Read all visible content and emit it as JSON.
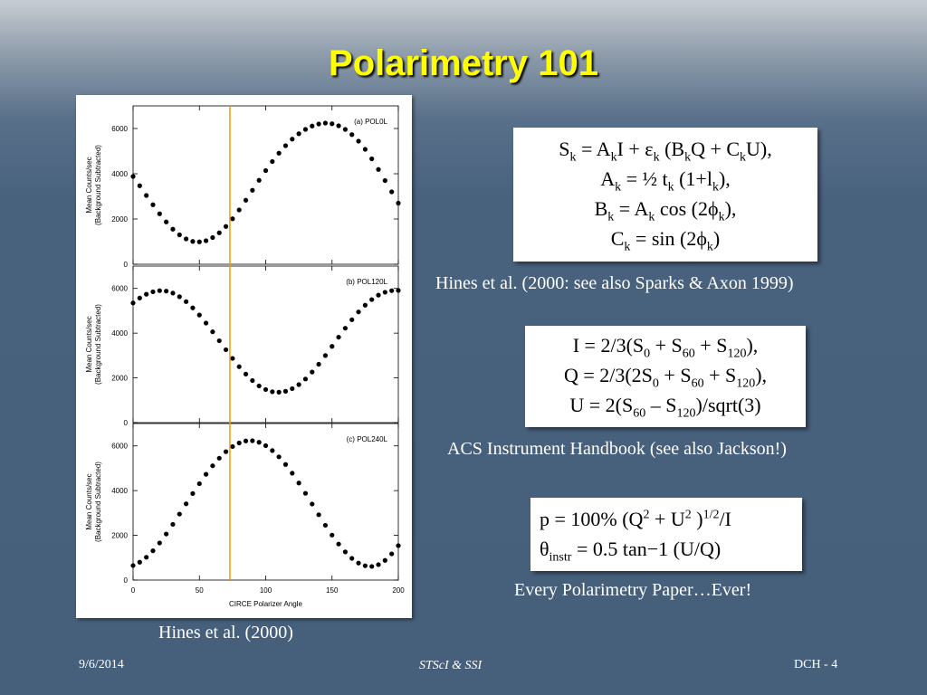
{
  "slide": {
    "title": "Polarimetry 101",
    "figure_caption": "Hines et al. (2000)",
    "box1_caption": "Hines et al. (2000: see also Sparks & Axon 1999)",
    "box2_caption": "ACS Instrument Handbook (see also Jackson!)",
    "box3_caption": "Every Polarimetry Paper…Ever!"
  },
  "footer": {
    "date": "9/6/2014",
    "center": "STScI & SSI",
    "page": "DCH - 4"
  },
  "colors": {
    "title": "#ffff00",
    "marker_line": "#f29a00",
    "background": "#46607c"
  },
  "chart_data": [
    {
      "type": "scatter",
      "panel_label": "(a) POL0L",
      "ylabel": "Mean Counts/sec\n(Background Subtracted)",
      "xlabel": "",
      "xlim": [
        0,
        200
      ],
      "ylim": [
        0,
        7000
      ],
      "yticks": [
        0,
        2000,
        4000,
        6000
      ],
      "xticks": [
        0,
        50,
        100,
        150,
        200
      ],
      "x": [
        0,
        5,
        10,
        15,
        20,
        25,
        30,
        35,
        40,
        45,
        50,
        55,
        60,
        65,
        70,
        75,
        80,
        85,
        90,
        95,
        100,
        105,
        110,
        115,
        120,
        125,
        130,
        135,
        140,
        145,
        150,
        155,
        160,
        165,
        170,
        175,
        180,
        185,
        190,
        195,
        200
      ],
      "y": [
        3880,
        3470,
        3040,
        2630,
        2230,
        1870,
        1550,
        1300,
        1120,
        1010,
        990,
        1040,
        1180,
        1390,
        1670,
        2010,
        2400,
        2830,
        3270,
        3710,
        4140,
        4540,
        4910,
        5240,
        5530,
        5770,
        5960,
        6110,
        6200,
        6240,
        6210,
        6120,
        5960,
        5730,
        5440,
        5080,
        4660,
        4190,
        3700,
        3200,
        2700
      ],
      "vline_x": 73
    },
    {
      "type": "scatter",
      "panel_label": "(b) POL120L",
      "ylabel": "Mean Counts/sec\n(Background Subtracted)",
      "xlabel": "",
      "xlim": [
        0,
        200
      ],
      "ylim": [
        0,
        7000
      ],
      "yticks": [
        0,
        2000,
        4000,
        6000
      ],
      "xticks": [
        0,
        50,
        100,
        150,
        200
      ],
      "x": [
        0,
        5,
        10,
        15,
        20,
        25,
        30,
        35,
        40,
        45,
        50,
        55,
        60,
        65,
        70,
        75,
        80,
        85,
        90,
        95,
        100,
        105,
        110,
        115,
        120,
        125,
        130,
        135,
        140,
        145,
        150,
        155,
        160,
        165,
        170,
        175,
        180,
        185,
        190,
        195,
        200
      ],
      "y": [
        5350,
        5570,
        5740,
        5850,
        5900,
        5880,
        5790,
        5630,
        5410,
        5130,
        4810,
        4450,
        4060,
        3660,
        3260,
        2870,
        2500,
        2170,
        1880,
        1640,
        1480,
        1380,
        1360,
        1400,
        1520,
        1700,
        1950,
        2260,
        2610,
        3000,
        3410,
        3820,
        4220,
        4600,
        4950,
        5250,
        5500,
        5700,
        5830,
        5900,
        5910
      ],
      "vline_x": 73
    },
    {
      "type": "scatter",
      "panel_label": "(c) POL240L",
      "ylabel": "Mean Counts/sec\n(Background Subtracted)",
      "xlabel": "CIRCE Polarizer Angle",
      "xlim": [
        0,
        200
      ],
      "ylim": [
        0,
        7000
      ],
      "yticks": [
        0,
        2000,
        4000,
        6000
      ],
      "xticks": [
        0,
        50,
        100,
        150,
        200
      ],
      "x": [
        0,
        5,
        10,
        15,
        20,
        25,
        30,
        35,
        40,
        45,
        50,
        55,
        60,
        65,
        70,
        75,
        80,
        85,
        90,
        95,
        100,
        105,
        110,
        115,
        120,
        125,
        130,
        135,
        140,
        145,
        150,
        155,
        160,
        165,
        170,
        175,
        180,
        185,
        190,
        195,
        200
      ],
      "y": [
        650,
        800,
        1020,
        1310,
        1660,
        2060,
        2490,
        2950,
        3410,
        3870,
        4310,
        4730,
        5110,
        5450,
        5740,
        5970,
        6130,
        6220,
        6230,
        6160,
        6010,
        5790,
        5510,
        5170,
        4780,
        4340,
        3880,
        3400,
        2920,
        2450,
        2010,
        1610,
        1260,
        970,
        760,
        640,
        610,
        690,
        880,
        1170,
        1540
      ],
      "vline_x": 73
    }
  ]
}
